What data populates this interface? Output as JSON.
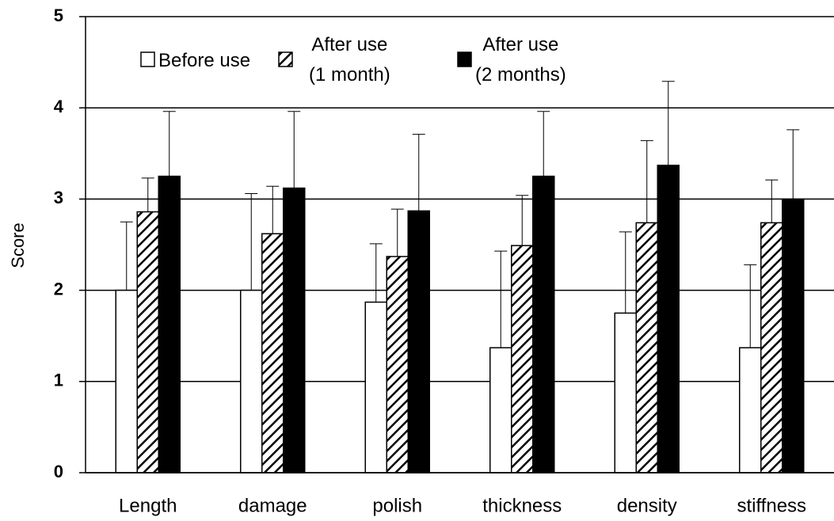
{
  "chart_data": {
    "type": "bar",
    "y_label": "Score",
    "categories": [
      "Length",
      "damage",
      "polish",
      "thickness",
      "density",
      "stiffness"
    ],
    "series": [
      {
        "name": "Before use",
        "color": "#ffffff",
        "pattern": "none",
        "values": [
          2.0,
          2.0,
          1.87,
          1.37,
          1.75,
          1.37
        ],
        "errors": [
          0.75,
          1.06,
          0.64,
          1.06,
          0.89,
          0.91
        ]
      },
      {
        "name": "After use\n(1 month)",
        "color": "#ffffff",
        "pattern": "hatch",
        "values": [
          2.86,
          2.62,
          2.37,
          2.49,
          2.74,
          2.74
        ],
        "errors": [
          0.37,
          0.52,
          0.52,
          0.55,
          0.9,
          0.47
        ]
      },
      {
        "name": "After use\n(2 months)",
        "color": "#000000",
        "pattern": "none",
        "values": [
          3.25,
          3.12,
          2.87,
          3.25,
          3.37,
          3.0
        ],
        "errors": [
          0.71,
          0.84,
          0.84,
          0.71,
          0.92,
          0.76
        ]
      }
    ],
    "ylim": [
      0,
      5
    ],
    "yticks": [
      0,
      1,
      2,
      3,
      4,
      5
    ],
    "grid": true,
    "legend": "top"
  }
}
